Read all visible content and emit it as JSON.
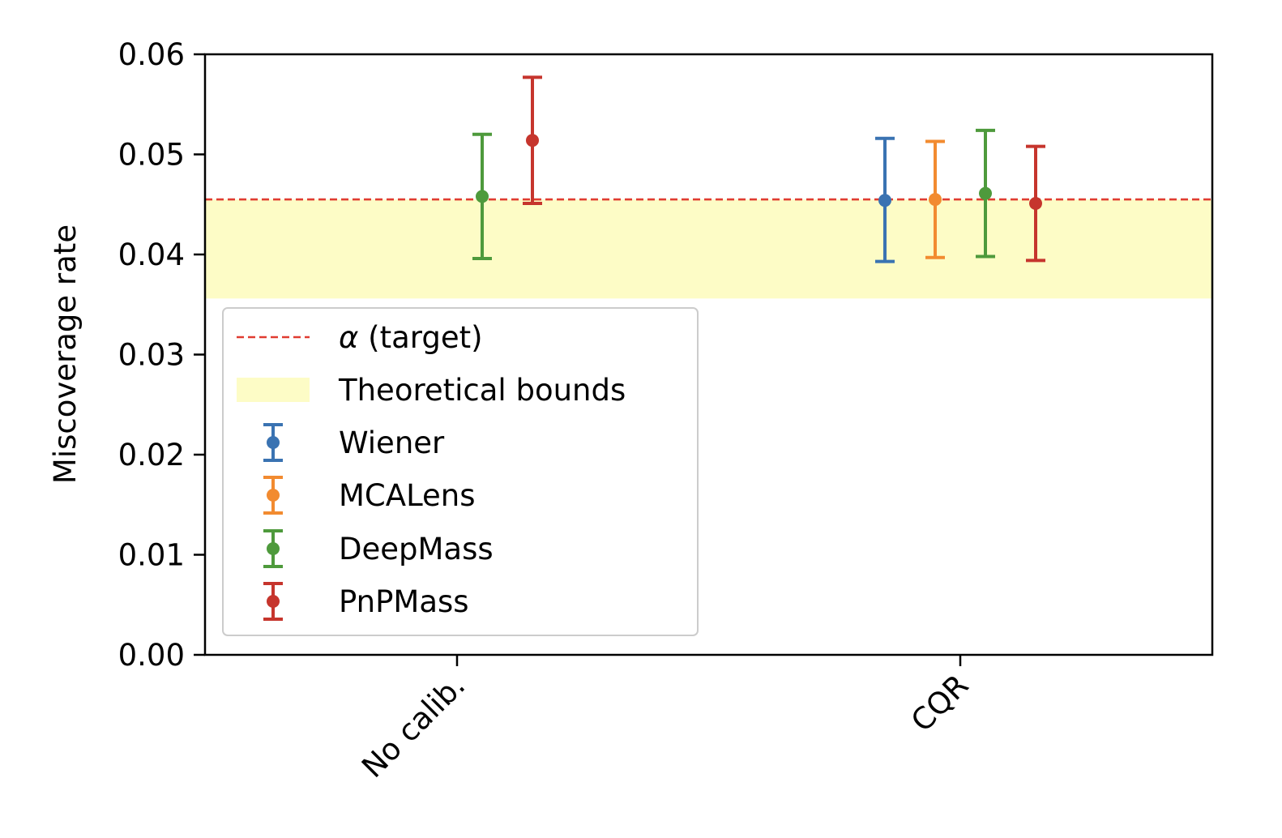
{
  "chart_data": {
    "type": "errorbar",
    "title": "",
    "xlabel": "",
    "ylabel": "Miscoverage rate",
    "ylim": [
      0.0,
      0.06
    ],
    "yticks": [
      "0.00",
      "0.01",
      "0.02",
      "0.03",
      "0.04",
      "0.05",
      "0.06"
    ],
    "categories": [
      "No calib.",
      "CQR"
    ],
    "target": {
      "label_symbol": "α",
      "label_text": " (target)",
      "value": 0.0455,
      "color": "#e03c31"
    },
    "bounds": {
      "label": "Theoretical bounds",
      "low": 0.0356,
      "high": 0.0455,
      "color": "#fdfcc6"
    },
    "series": [
      {
        "name": "Wiener",
        "color": "#3a73b2",
        "points": [
          null,
          {
            "value": 0.0454,
            "low": 0.0393,
            "high": 0.0516
          }
        ]
      },
      {
        "name": "MCALens",
        "color": "#f28b30",
        "points": [
          null,
          {
            "value": 0.0455,
            "low": 0.0397,
            "high": 0.0513
          }
        ]
      },
      {
        "name": "DeepMass",
        "color": "#4e9a3c",
        "points": [
          {
            "value": 0.0458,
            "low": 0.0396,
            "high": 0.052
          },
          {
            "value": 0.0461,
            "low": 0.0398,
            "high": 0.0524
          }
        ]
      },
      {
        "name": "PnPMass",
        "color": "#c6352d",
        "points": [
          {
            "value": 0.0514,
            "low": 0.0451,
            "high": 0.0577
          },
          {
            "value": 0.0451,
            "low": 0.0394,
            "high": 0.0508
          }
        ]
      }
    ]
  }
}
